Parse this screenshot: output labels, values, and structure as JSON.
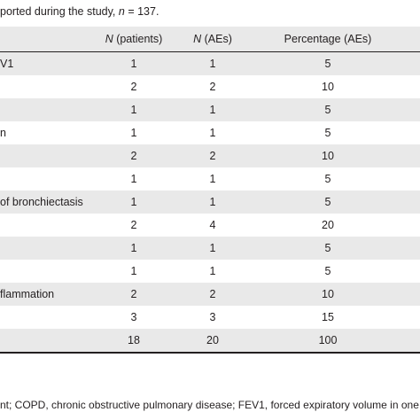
{
  "caption": {
    "prefix": "ported during the study, ",
    "n_symbol": "n",
    "suffix": " = 137."
  },
  "table": {
    "headers": {
      "label": "",
      "patients_symbol": "N",
      "patients_text": " (patients)",
      "aes_symbol": "N",
      "aes_text": " (AEs)",
      "percentage": "Percentage (AEs)"
    },
    "rows": [
      {
        "label": "V1",
        "patients": "1",
        "aes": "1",
        "percentage": "5"
      },
      {
        "label": "",
        "patients": "2",
        "aes": "2",
        "percentage": "10"
      },
      {
        "label": "",
        "patients": "1",
        "aes": "1",
        "percentage": "5"
      },
      {
        "label": "n",
        "patients": "1",
        "aes": "1",
        "percentage": "5"
      },
      {
        "label": "",
        "patients": "2",
        "aes": "2",
        "percentage": "10"
      },
      {
        "label": "",
        "patients": "1",
        "aes": "1",
        "percentage": "5"
      },
      {
        "label": "of bronchiectasis",
        "patients": "1",
        "aes": "1",
        "percentage": "5"
      },
      {
        "label": "",
        "patients": "2",
        "aes": "4",
        "percentage": "20"
      },
      {
        "label": "",
        "patients": "1",
        "aes": "1",
        "percentage": "5"
      },
      {
        "label": "",
        "patients": "1",
        "aes": "1",
        "percentage": "5"
      },
      {
        "label": "flammation",
        "patients": "2",
        "aes": "2",
        "percentage": "10"
      },
      {
        "label": "",
        "patients": "3",
        "aes": "3",
        "percentage": "15"
      },
      {
        "label": "",
        "patients": "18",
        "aes": "20",
        "percentage": "100"
      }
    ]
  },
  "footnote": "nt; COPD, chronic obstructive pulmonary disease; FEV1, forced expiratory volume in one s"
}
